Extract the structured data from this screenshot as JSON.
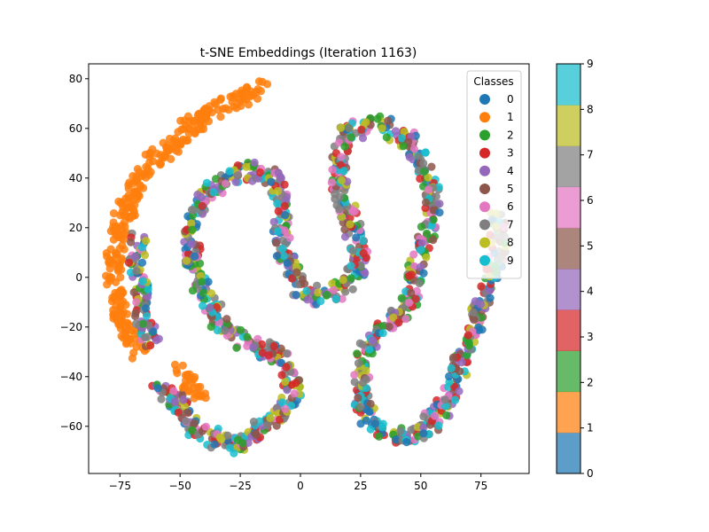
{
  "chart_data": {
    "type": "scatter",
    "title": "t-SNE Embeddings (Iteration 1163)",
    "xlabel": "",
    "ylabel": "",
    "xlim": [
      -88,
      95
    ],
    "ylim": [
      -79,
      86
    ],
    "x_ticks": [
      -75,
      -50,
      -25,
      0,
      25,
      50,
      75
    ],
    "x_tick_labels": [
      "−75",
      "−50",
      "−25",
      "0",
      "25",
      "50",
      "75"
    ],
    "y_ticks": [
      -60,
      -40,
      -20,
      0,
      20,
      40,
      60,
      80
    ],
    "y_tick_labels": [
      "−60",
      "−40",
      "−20",
      "0",
      "20",
      "40",
      "60",
      "80"
    ],
    "grid": false,
    "legend": {
      "title": "Classes",
      "placement": "top-right",
      "entries": [
        "0",
        "1",
        "2",
        "3",
        "4",
        "5",
        "6",
        "7",
        "8",
        "9"
      ]
    },
    "class_colors": [
      "#1f77b4",
      "#ff7f0e",
      "#2ca02c",
      "#d62728",
      "#9467bd",
      "#8c564b",
      "#e377c2",
      "#7f7f7f",
      "#bcbd22",
      "#17becf"
    ],
    "colorbar": {
      "range": [
        0,
        9
      ],
      "ticks": [
        0,
        1,
        2,
        3,
        4,
        5,
        6,
        7,
        8,
        9
      ],
      "tick_labels": [
        "0",
        "1",
        "2",
        "3",
        "4",
        "5",
        "6",
        "7",
        "8",
        "9"
      ]
    },
    "clusters": [
      {
        "class_mix": "1",
        "path": [
          [
            -17,
            76
          ],
          [
            -28,
            71
          ],
          [
            -40,
            65
          ],
          [
            -50,
            57
          ],
          [
            -59,
            49
          ],
          [
            -66,
            41
          ],
          [
            -71,
            31
          ],
          [
            -75,
            20
          ],
          [
            -77,
            10
          ],
          [
            -78,
            0
          ],
          [
            -76,
            -12
          ],
          [
            -72,
            -23
          ],
          [
            -66,
            -30
          ]
        ]
      },
      {
        "class_mix": "mixed",
        "path": [
          [
            -62,
            -27
          ],
          [
            -65,
            -17
          ],
          [
            -66,
            -5
          ],
          [
            -68,
            5
          ],
          [
            -67,
            15
          ]
        ]
      },
      {
        "class_mix": "mixed",
        "path": [
          [
            -60,
            -45
          ],
          [
            -50,
            -50
          ],
          [
            -45,
            -60
          ],
          [
            -35,
            -65
          ],
          [
            -25,
            -68
          ],
          [
            -18,
            -62
          ],
          [
            -10,
            -57
          ],
          [
            -5,
            -52
          ],
          [
            -3,
            -45
          ],
          [
            -5,
            -35
          ],
          [
            -12,
            -30
          ],
          [
            -22,
            -27
          ],
          [
            -30,
            -22
          ],
          [
            -35,
            -15
          ],
          [
            -40,
            -5
          ],
          [
            -45,
            5
          ],
          [
            -45,
            18
          ],
          [
            -42,
            30
          ],
          [
            -32,
            40
          ],
          [
            -20,
            43
          ],
          [
            -10,
            40
          ],
          [
            -8,
            30
          ],
          [
            -8,
            15
          ],
          [
            -5,
            5
          ],
          [
            0,
            -5
          ],
          [
            10,
            -8
          ],
          [
            20,
            -3
          ],
          [
            25,
            5
          ],
          [
            22,
            18
          ],
          [
            18,
            30
          ],
          [
            15,
            45
          ],
          [
            20,
            58
          ],
          [
            33,
            62
          ],
          [
            45,
            55
          ],
          [
            52,
            45
          ],
          [
            55,
            35
          ],
          [
            55,
            22
          ],
          [
            50,
            10
          ],
          [
            48,
            0
          ],
          [
            45,
            -12
          ],
          [
            35,
            -20
          ],
          [
            27,
            -28
          ],
          [
            25,
            -40
          ],
          [
            25,
            -50
          ],
          [
            30,
            -60
          ],
          [
            40,
            -65
          ],
          [
            50,
            -62
          ],
          [
            58,
            -55
          ],
          [
            65,
            -40
          ],
          [
            70,
            -25
          ],
          [
            75,
            -12
          ],
          [
            80,
            0
          ],
          [
            82,
            12
          ],
          [
            82,
            25
          ]
        ]
      },
      {
        "class_mix": "1",
        "path": [
          [
            -50,
            -38
          ],
          [
            -45,
            -44
          ],
          [
            -40,
            -46
          ]
        ]
      }
    ]
  }
}
